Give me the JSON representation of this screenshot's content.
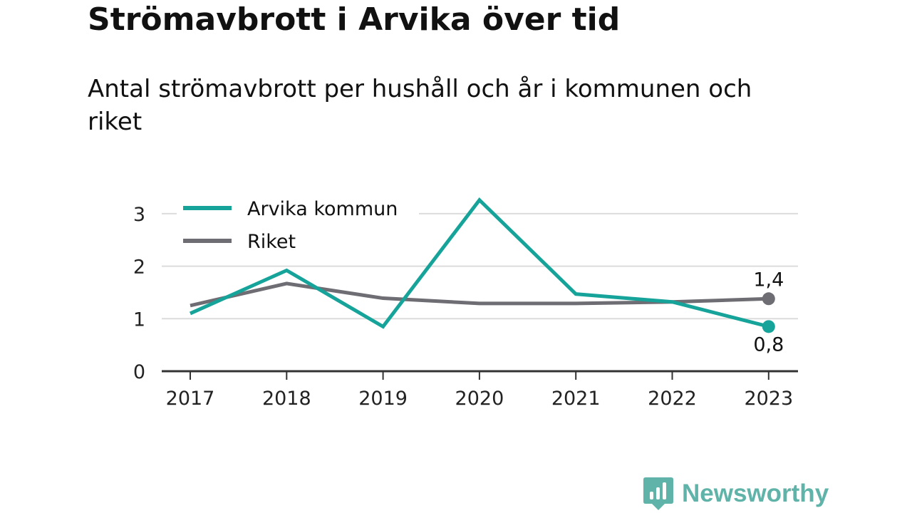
{
  "header": {
    "title": "Strömavbrott i Arvika över tid",
    "subtitle": "Antal strömavbrott per hushåll och år i kommunen och riket"
  },
  "brand": {
    "name": "Newsworthy",
    "icon": "newsworthy-logo-icon",
    "color": "#5fb3a8"
  },
  "chart_data": {
    "type": "line",
    "x": [
      "2017",
      "2018",
      "2019",
      "2020",
      "2021",
      "2022",
      "2023"
    ],
    "ylim": [
      0,
      3.3
    ],
    "yticks": [
      0,
      1,
      2,
      3
    ],
    "ytick_labels": [
      "0",
      "1",
      "2",
      "3"
    ],
    "grid": true,
    "legend_position": "top-left",
    "series": [
      {
        "name": "Arvika kommun",
        "color": "#16a39a",
        "values": [
          1.1,
          1.92,
          0.85,
          3.26,
          1.47,
          1.32,
          0.85
        ],
        "end_label": "0,8"
      },
      {
        "name": "Riket",
        "color": "#6e6d73",
        "values": [
          1.25,
          1.67,
          1.39,
          1.29,
          1.29,
          1.32,
          1.38
        ],
        "end_label": "1,4"
      }
    ]
  }
}
